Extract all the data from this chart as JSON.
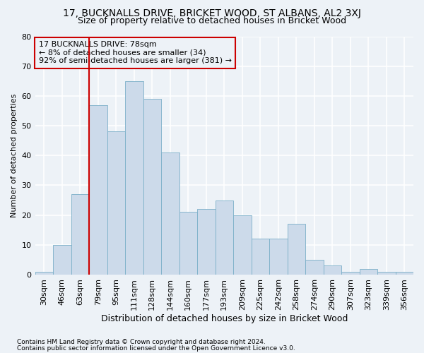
{
  "title1": "17, BUCKNALLS DRIVE, BRICKET WOOD, ST ALBANS, AL2 3XJ",
  "title2": "Size of property relative to detached houses in Bricket Wood",
  "xlabel": "Distribution of detached houses by size in Bricket Wood",
  "ylabel": "Number of detached properties",
  "footer1": "Contains HM Land Registry data © Crown copyright and database right 2024.",
  "footer2": "Contains public sector information licensed under the Open Government Licence v3.0.",
  "bar_labels": [
    "30sqm",
    "46sqm",
    "63sqm",
    "79sqm",
    "95sqm",
    "111sqm",
    "128sqm",
    "144sqm",
    "160sqm",
    "177sqm",
    "193sqm",
    "209sqm",
    "225sqm",
    "242sqm",
    "258sqm",
    "274sqm",
    "290sqm",
    "307sqm",
    "323sqm",
    "339sqm",
    "356sqm"
  ],
  "bar_values": [
    1,
    10,
    27,
    57,
    48,
    65,
    59,
    41,
    21,
    22,
    25,
    20,
    12,
    12,
    17,
    5,
    3,
    1,
    2,
    1,
    1
  ],
  "bar_color": "#ccdaea",
  "bar_edge_color": "#7aafc8",
  "vline_x_index": 3,
  "vline_color": "#cc0000",
  "annotation_text": "17 BUCKNALLS DRIVE: 78sqm\n← 8% of detached houses are smaller (34)\n92% of semi-detached houses are larger (381) →",
  "ylim": [
    0,
    80
  ],
  "yticks": [
    0,
    10,
    20,
    30,
    40,
    50,
    60,
    70,
    80
  ],
  "bg_color": "#edf2f7",
  "grid_color": "#ffffff",
  "title1_fontsize": 10,
  "title2_fontsize": 9,
  "xlabel_fontsize": 9,
  "ylabel_fontsize": 8,
  "tick_fontsize": 8,
  "footer_fontsize": 6.5,
  "annot_fontsize": 8
}
